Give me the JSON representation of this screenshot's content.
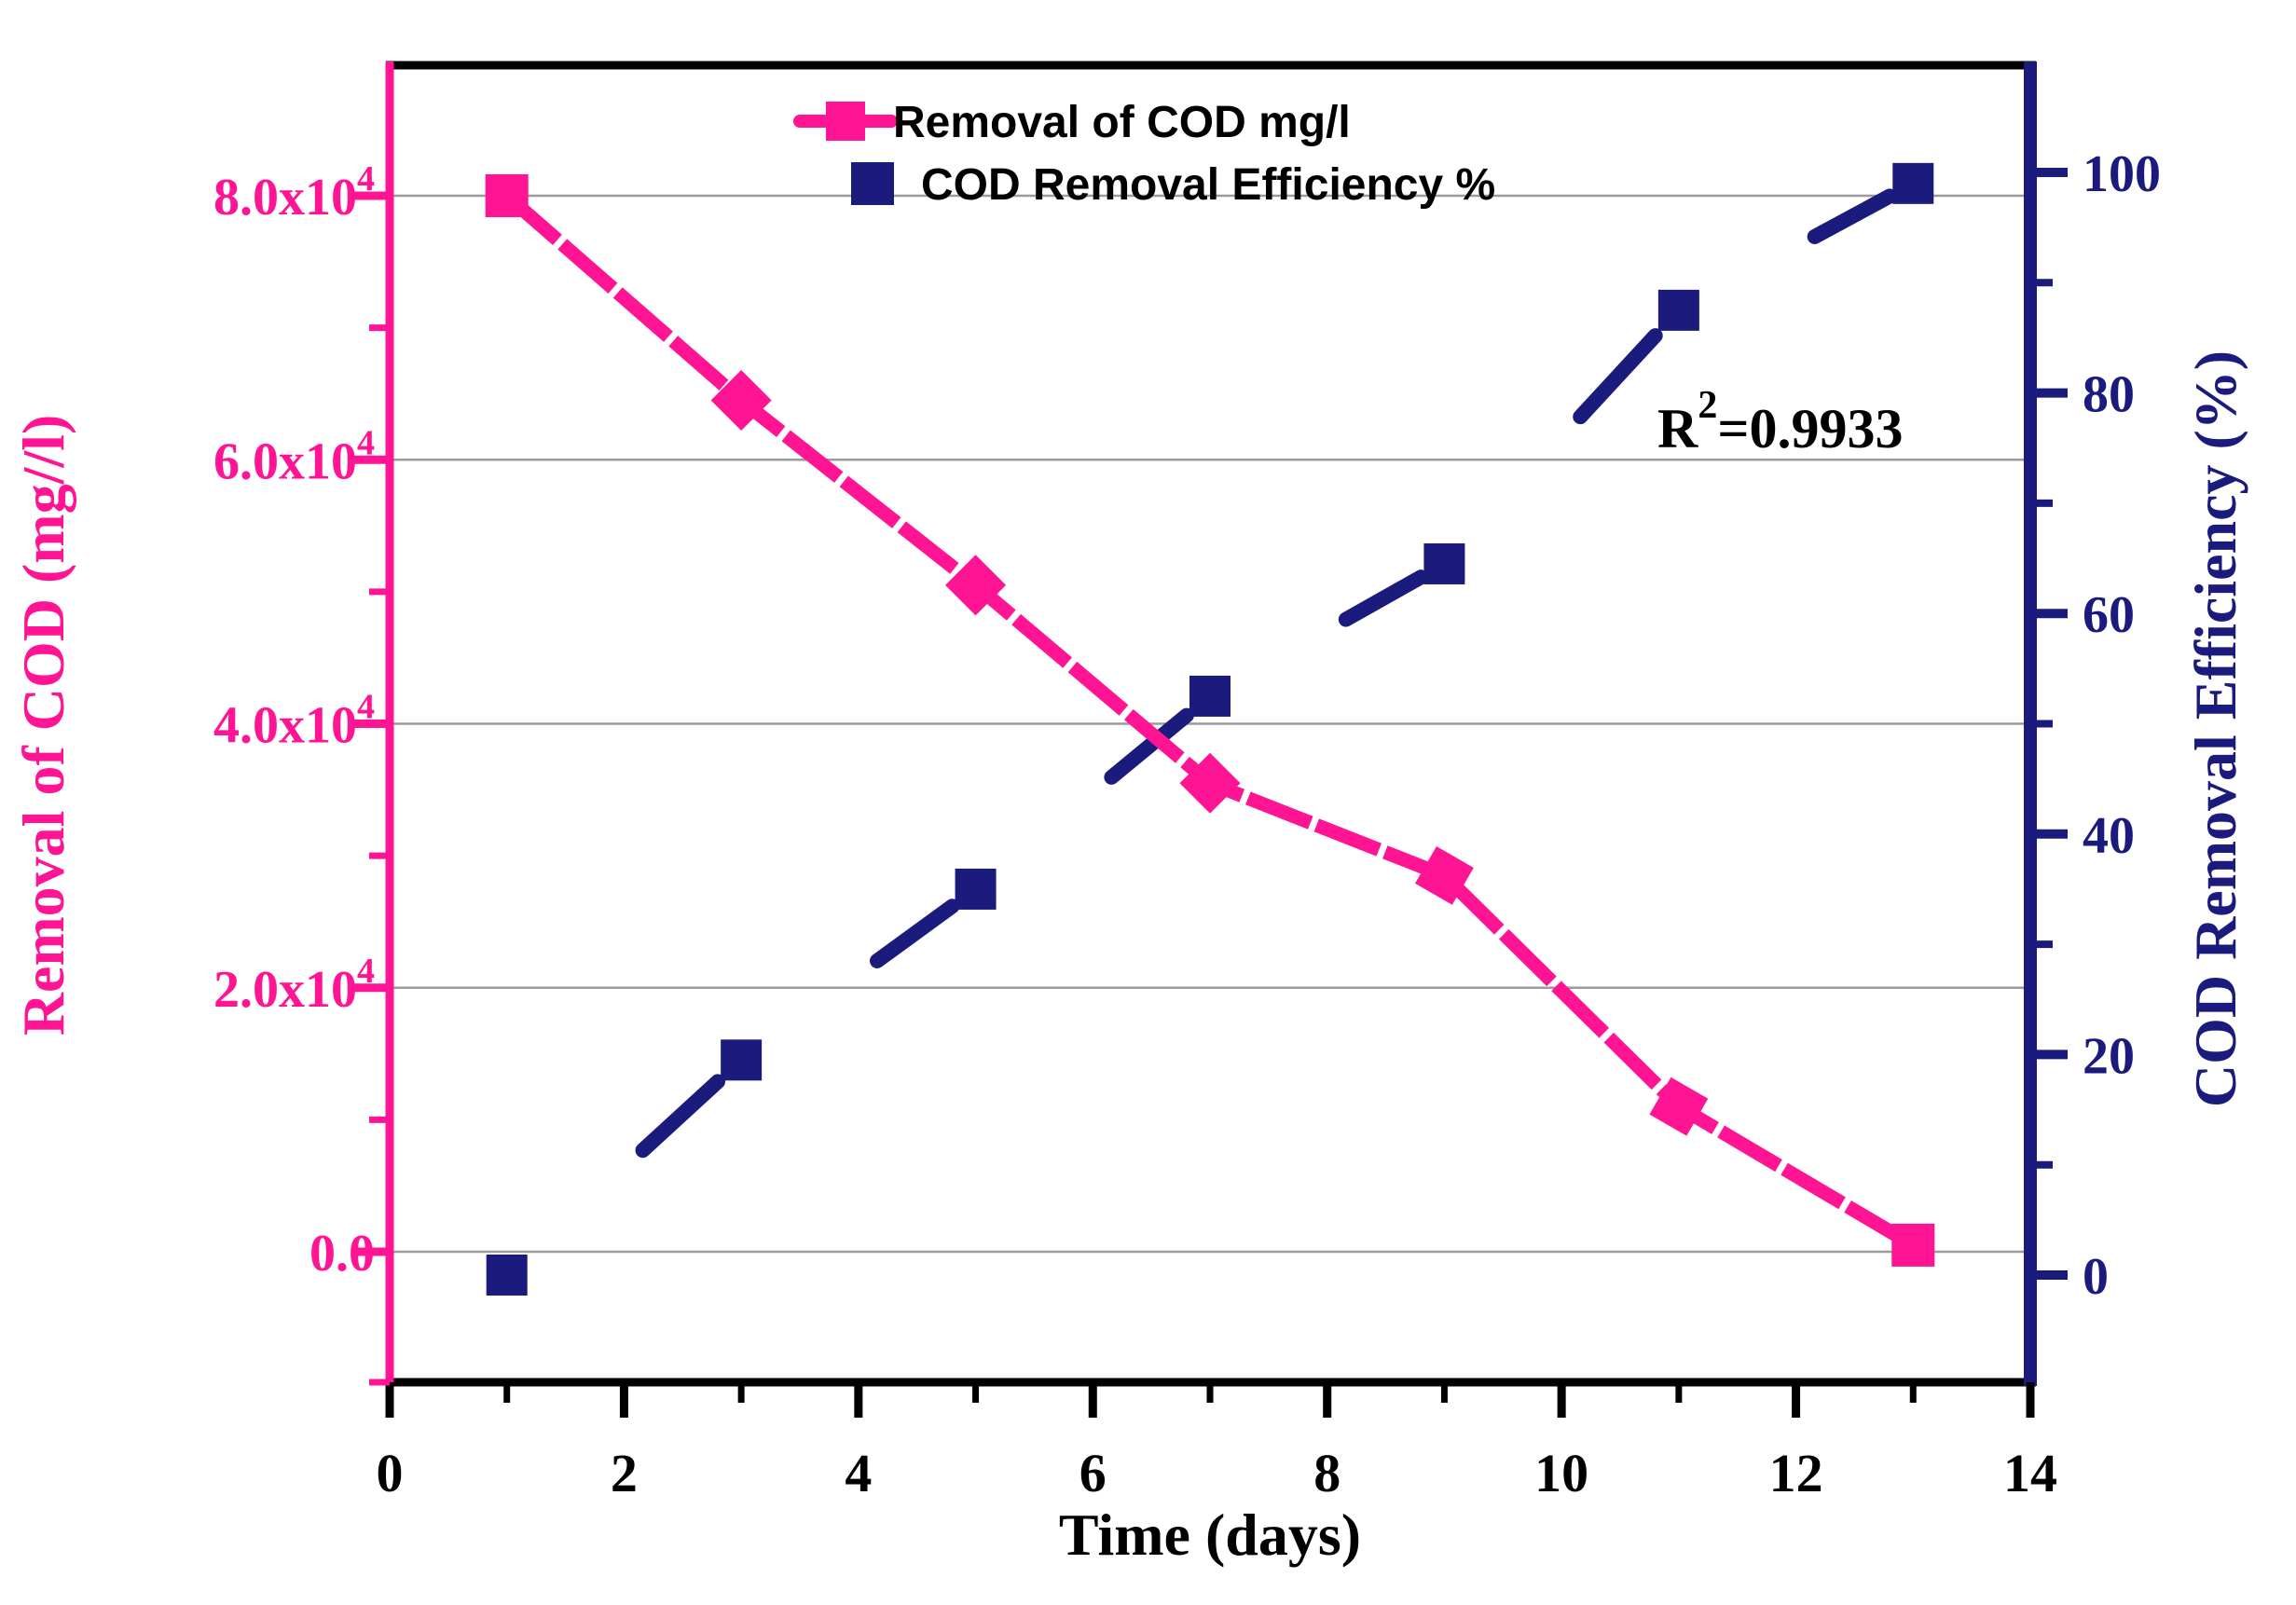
{
  "chart_data": {
    "type": "line",
    "title": "",
    "x": [
      1,
      3,
      5,
      7,
      9,
      11,
      13
    ],
    "series": [
      {
        "name": "Removal of COD mg/l",
        "axis": "left",
        "color": "#ff1493",
        "marker": "square",
        "line_style": "thick-dashed-almost-solid",
        "values": [
          80000,
          64500,
          50500,
          35500,
          28500,
          11000,
          500
        ]
      },
      {
        "name": "COD Removal Efficiency %",
        "axis": "right",
        "color": "#1b1b7e",
        "marker": "square",
        "line_style": "sparse-dash-segments",
        "values": [
          0,
          19.5,
          35,
          52.5,
          64.5,
          87.5,
          99
        ]
      }
    ],
    "xlabel": "Time (days)",
    "ylabel_left": "Removal of COD (mg//l)",
    "ylabel_right": "COD Removal Efficiency (%)",
    "xlim": [
      0,
      14
    ],
    "x_major_ticks": [
      "0",
      "2",
      "4",
      "6",
      "8",
      "10",
      "12",
      "14"
    ],
    "x_minor_ticks": [
      1,
      3,
      5,
      7,
      9,
      11,
      13
    ],
    "ylim_left": [
      0,
      80000
    ],
    "left_ticks": [
      {
        "value": 0,
        "label": "0.0",
        "sup": ""
      },
      {
        "value": 20000,
        "label": "2.0x10",
        "sup": "4"
      },
      {
        "value": 40000,
        "label": "4.0x10",
        "sup": "4"
      },
      {
        "value": 60000,
        "label": "6.0x10",
        "sup": "4"
      },
      {
        "value": 80000,
        "label": "8.0x10",
        "sup": "4"
      }
    ],
    "left_minor_ticks": [
      10000,
      30000,
      50000,
      70000
    ],
    "ylim_right": [
      0,
      100
    ],
    "right_ticks": [
      "0",
      "20",
      "40",
      "60",
      "80",
      "100"
    ],
    "right_minor_ticks": [
      10,
      30,
      50,
      70,
      90
    ],
    "grid": "horizontal-at-left-major-ticks",
    "legend_position": "top-center-inside",
    "annotation": {
      "prefix": "R",
      "sup": "2",
      "suffix": "=0.9933"
    }
  },
  "colors": {
    "pink": "#ff1493",
    "navy": "#1b1b7e",
    "frame_black": "#000000",
    "grid_gray": "#9b9b9b",
    "legend_text": "#000000",
    "background": "#ffffff"
  }
}
